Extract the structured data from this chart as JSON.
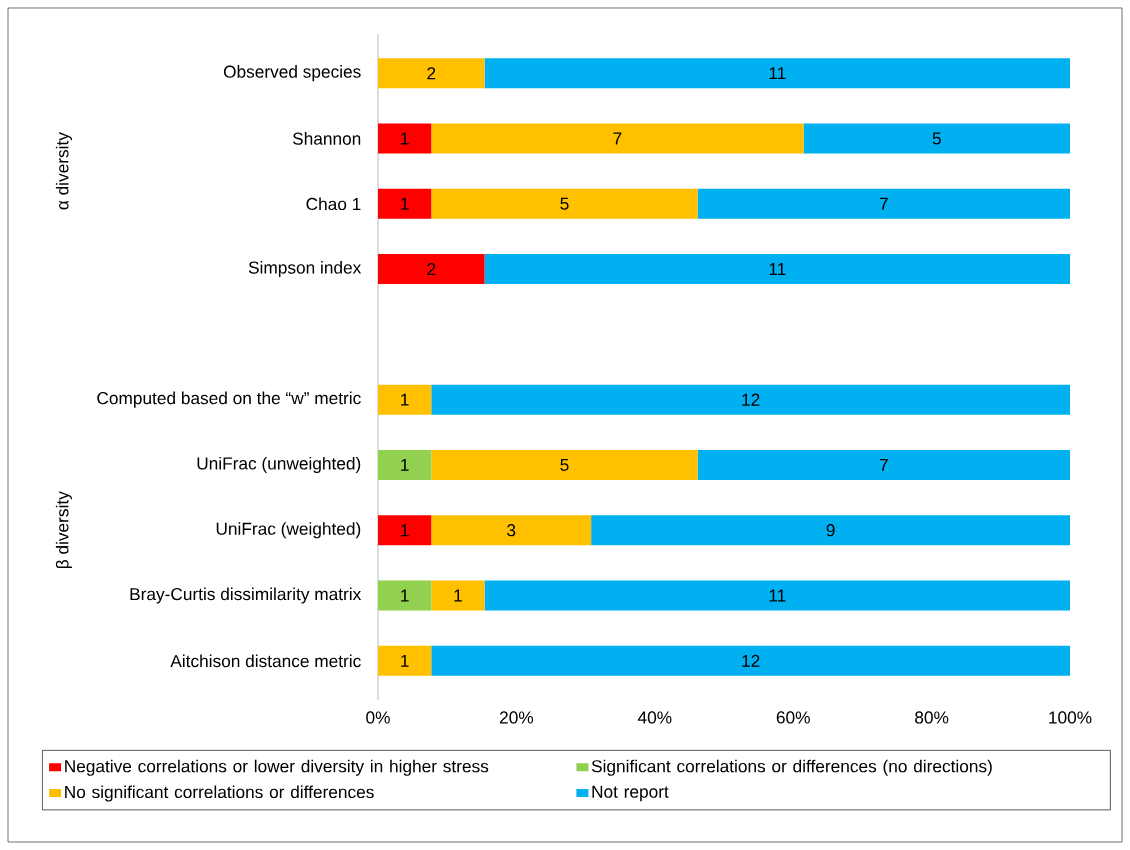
{
  "chart_data": {
    "type": "bar",
    "orientation": "horizontal",
    "stacked": true,
    "legend": "bottom",
    "categories": [
      "Observed species",
      "Shannon",
      "Chao 1",
      "Simpson index",
      null,
      "Computed based on the “w” metric",
      "UniFrac (unweighted)",
      "UniFrac (weighted)",
      "Bray-Curtis dissimilarity matrix",
      "Aitchison distance metric"
    ],
    "series": [
      {
        "name": "Negative correlations or lower diversity in higher stress",
        "color": "#ff0000",
        "values": [
          null,
          7.7,
          7.7,
          15.4,
          null,
          null,
          null,
          7.7,
          null,
          null
        ]
      },
      {
        "name": "Significant correlations or differences (no directions)",
        "color": "#92d050",
        "values": [
          null,
          null,
          null,
          null,
          null,
          null,
          7.7,
          null,
          7.7,
          null
        ]
      },
      {
        "name": "No significant correlations or differences",
        "color": "#ffc000",
        "values": [
          15.4,
          53.8,
          38.5,
          null,
          null,
          7.7,
          38.5,
          23.1,
          7.7,
          7.7
        ]
      },
      {
        "name": "Not report",
        "color": "#00b0f0",
        "values": [
          84.6,
          38.5,
          53.8,
          84.6,
          null,
          92.3,
          53.8,
          69.2,
          84.6,
          92.3
        ]
      }
    ],
    "xlim": [
      0,
      100
    ],
    "xticks": [
      {
        "value": 0,
        "label": "0%"
      },
      {
        "value": 20,
        "label": "20%"
      },
      {
        "value": 40,
        "label": "40%"
      },
      {
        "value": 60,
        "label": "60%"
      },
      {
        "value": 80,
        "label": "80%"
      },
      {
        "value": 100,
        "label": "100%"
      }
    ],
    "annotations": [
      "α diversity",
      "β diversity",
      "2",
      "11",
      "1",
      "7",
      "5",
      "1",
      "5",
      "7",
      "2",
      "11",
      "1",
      "12",
      "1",
      "5",
      "7",
      "1",
      "3",
      "9",
      "1",
      "1",
      "11",
      "1",
      "12"
    ]
  }
}
